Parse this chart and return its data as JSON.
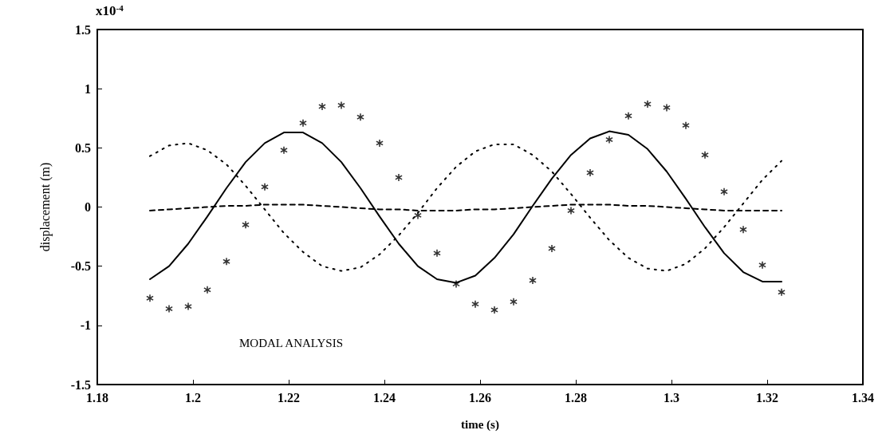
{
  "chart_data": {
    "type": "line",
    "xlabel": "time (s)",
    "ylabel": "displacement (m)",
    "annotations": [
      "x10$^{-4}$",
      "MODAL ANALYSIS"
    ],
    "x": [
      1.191,
      1.195,
      1.199,
      1.203,
      1.207,
      1.211,
      1.215,
      1.219,
      1.223,
      1.227,
      1.231,
      1.235,
      1.239,
      1.243,
      1.247,
      1.251,
      1.255,
      1.259,
      1.263,
      1.267,
      1.271,
      1.275,
      1.279,
      1.283,
      1.287,
      1.291,
      1.295,
      1.299,
      1.303,
      1.307,
      1.311,
      1.315,
      1.319,
      1.323
    ],
    "series": [
      {
        "color": "#000000",
        "line_style": "solid",
        "marker": "none",
        "values": [
          -0.61,
          -0.5,
          -0.31,
          -0.08,
          0.16,
          0.38,
          0.54,
          0.63,
          0.63,
          0.54,
          0.38,
          0.16,
          -0.08,
          -0.31,
          -0.5,
          -0.61,
          -0.64,
          -0.58,
          -0.43,
          -0.23,
          0.01,
          0.24,
          0.44,
          0.58,
          0.64,
          0.61,
          0.49,
          0.3,
          0.07,
          -0.17,
          -0.39,
          -0.55,
          -0.63,
          -0.63
        ]
      },
      {
        "type": "scatter",
        "color": "#000000",
        "marker": "star",
        "values": [
          -0.77,
          -0.86,
          -0.84,
          -0.7,
          -0.46,
          -0.15,
          0.17,
          0.48,
          0.71,
          0.85,
          0.86,
          0.76,
          0.54,
          0.25,
          -0.07,
          -0.39,
          -0.65,
          -0.82,
          -0.87,
          -0.8,
          -0.62,
          -0.35,
          -0.03,
          0.29,
          0.57,
          0.77,
          0.87,
          0.84,
          0.69,
          0.44,
          0.13,
          -0.19,
          -0.49,
          -0.72
        ]
      },
      {
        "color": "#000000",
        "line_style": "dotted",
        "marker": "none",
        "values": [
          0.43,
          0.52,
          0.54,
          0.48,
          0.36,
          0.18,
          -0.02,
          -0.22,
          -0.38,
          -0.5,
          -0.54,
          -0.51,
          -0.4,
          -0.24,
          -0.05,
          0.16,
          0.34,
          0.47,
          0.53,
          0.53,
          0.44,
          0.3,
          0.11,
          -0.09,
          -0.28,
          -0.43,
          -0.52,
          -0.54,
          -0.48,
          -0.35,
          -0.17,
          0.03,
          0.23,
          0.39
        ]
      },
      {
        "color": "#000000",
        "line_style": "dashed",
        "marker": "none",
        "values": [
          -0.03,
          -0.02,
          -0.01,
          0.0,
          0.01,
          0.01,
          0.02,
          0.02,
          0.02,
          0.01,
          0.0,
          -0.01,
          -0.02,
          -0.02,
          -0.03,
          -0.03,
          -0.03,
          -0.02,
          -0.02,
          -0.01,
          0.0,
          0.01,
          0.02,
          0.02,
          0.02,
          0.01,
          0.01,
          0.0,
          -0.01,
          -0.02,
          -0.03,
          -0.03,
          -0.03,
          -0.03
        ]
      }
    ],
    "xlim": [
      1.18,
      1.34
    ],
    "xticks": [
      1.18,
      1.2,
      1.22,
      1.24,
      1.26,
      1.28,
      1.3,
      1.32,
      1.34
    ],
    "ylim": [
      -1.5,
      1.5
    ],
    "yticks": [
      -1.5,
      -1,
      -0.5,
      0,
      0.5,
      1,
      1.5
    ],
    "grid": false
  }
}
